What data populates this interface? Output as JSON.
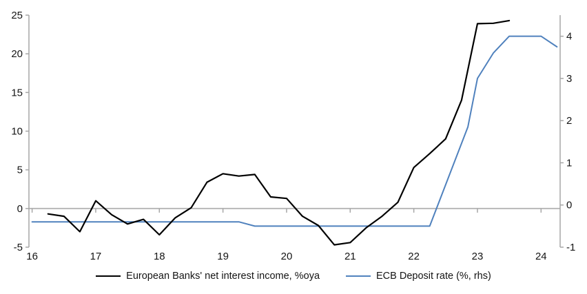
{
  "chart_data": {
    "type": "line",
    "title": "",
    "x_axis": {
      "tick_labels": [
        "16",
        "17",
        "18",
        "19",
        "20",
        "21",
        "22",
        "23",
        "24"
      ],
      "tick_values": [
        16,
        17,
        18,
        19,
        20,
        21,
        22,
        23,
        24
      ],
      "range": [
        15.95,
        24.3
      ]
    },
    "left_axis": {
      "tick_labels": [
        "-5",
        "0",
        "5",
        "10",
        "15",
        "20",
        "25"
      ],
      "tick_values": [
        -5,
        0,
        5,
        10,
        15,
        20,
        25
      ],
      "range": [
        -5,
        25
      ]
    },
    "right_axis": {
      "tick_labels": [
        "-1",
        "0",
        "1",
        "2",
        "3",
        "4"
      ],
      "tick_values": [
        -1,
        0,
        1,
        2,
        3,
        4
      ],
      "range": [
        -1,
        4.5
      ]
    },
    "zero_line": true,
    "grid": false,
    "legend_position": "bottom",
    "series": [
      {
        "name": "European Banks' net interest income, %oya",
        "axis": "left",
        "color": "#000000",
        "points": [
          [
            16.25,
            -0.7
          ],
          [
            16.5,
            -1.0
          ],
          [
            16.75,
            -3.0
          ],
          [
            17.0,
            1.0
          ],
          [
            17.25,
            -0.8
          ],
          [
            17.5,
            -2.0
          ],
          [
            17.75,
            -1.4
          ],
          [
            18.0,
            -3.4
          ],
          [
            18.25,
            -1.2
          ],
          [
            18.5,
            0.1
          ],
          [
            18.75,
            3.4
          ],
          [
            19.0,
            4.5
          ],
          [
            19.25,
            4.2
          ],
          [
            19.5,
            4.4
          ],
          [
            19.75,
            1.5
          ],
          [
            20.0,
            1.3
          ],
          [
            20.25,
            -1.0
          ],
          [
            20.5,
            -2.2
          ],
          [
            20.75,
            -4.7
          ],
          [
            21.0,
            -4.4
          ],
          [
            21.25,
            -2.5
          ],
          [
            21.5,
            -1.0
          ],
          [
            21.75,
            0.8
          ],
          [
            22.0,
            5.3
          ],
          [
            22.25,
            7.1
          ],
          [
            22.5,
            9.0
          ],
          [
            22.75,
            14.0
          ],
          [
            23.0,
            23.9
          ],
          [
            23.25,
            23.95
          ],
          [
            23.5,
            24.3
          ]
        ]
      },
      {
        "name": "ECB Deposit rate (%, rhs)",
        "axis": "right",
        "color": "#4f81bd",
        "points": [
          [
            16.0,
            -0.4
          ],
          [
            19.25,
            -0.4
          ],
          [
            19.5,
            -0.5
          ],
          [
            22.25,
            -0.5
          ],
          [
            22.85,
            1.85
          ],
          [
            23.0,
            3.0
          ],
          [
            23.25,
            3.6
          ],
          [
            23.5,
            4.0
          ],
          [
            24.0,
            4.0
          ],
          [
            24.25,
            3.75
          ]
        ]
      }
    ]
  },
  "colors": {
    "axis": "#a6a6a6",
    "zero_line": "#b3b3b3",
    "text": "#141414",
    "background": "#ffffff"
  }
}
